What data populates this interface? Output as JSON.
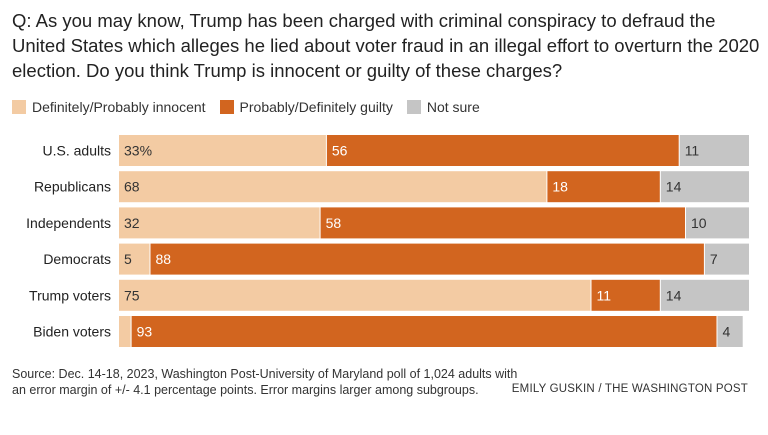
{
  "question": "Q: As you may know, Trump has been charged with criminal conspiracy to defraud the United States which alleges he lied about voter fraud in an illegal effort to overturn the 2020 election. Do you think Trump is innocent or guilty of these charges?",
  "legend": [
    {
      "label": "Definitely/Probably innocent",
      "color": "#f3cba3"
    },
    {
      "label": "Probably/Definitely guilty",
      "color": "#d2651f"
    },
    {
      "label": "Not sure",
      "color": "#c5c5c5"
    }
  ],
  "source": "Source: Dec. 14-18, 2023, Washington Post-University of Maryland poll of 1,024 adults with an error margin of +/- 4.1 percentage points. Error margins larger among subgroups.",
  "credit": "EMILY GUSKIN / THE WASHINGTON POST",
  "chart_data": {
    "type": "bar",
    "orientation": "horizontal",
    "stacked": true,
    "categories": [
      "U.S. adults",
      "Republicans",
      "Independents",
      "Democrats",
      "Trump voters",
      "Biden voters"
    ],
    "series": [
      {
        "name": "Definitely/Probably innocent",
        "values": [
          33,
          68,
          32,
          5,
          75,
          2
        ],
        "labels": [
          "33%",
          "68",
          "32",
          "5",
          "75",
          ""
        ]
      },
      {
        "name": "Probably/Definitely guilty",
        "values": [
          56,
          18,
          58,
          88,
          11,
          93
        ],
        "labels": [
          "56",
          "18",
          "58",
          "88",
          "11",
          "93"
        ]
      },
      {
        "name": "Not sure",
        "values": [
          11,
          14,
          10,
          7,
          14,
          4
        ],
        "labels": [
          "11",
          "14",
          "10",
          "7",
          "14",
          "4"
        ]
      }
    ],
    "colors": [
      "#f3cba3",
      "#d2651f",
      "#c5c5c5"
    ],
    "label_colors": [
      "#333333",
      "#ffffff",
      "#333333"
    ],
    "xlim": [
      0,
      100
    ],
    "grid": false,
    "legend_position": "top-left"
  }
}
